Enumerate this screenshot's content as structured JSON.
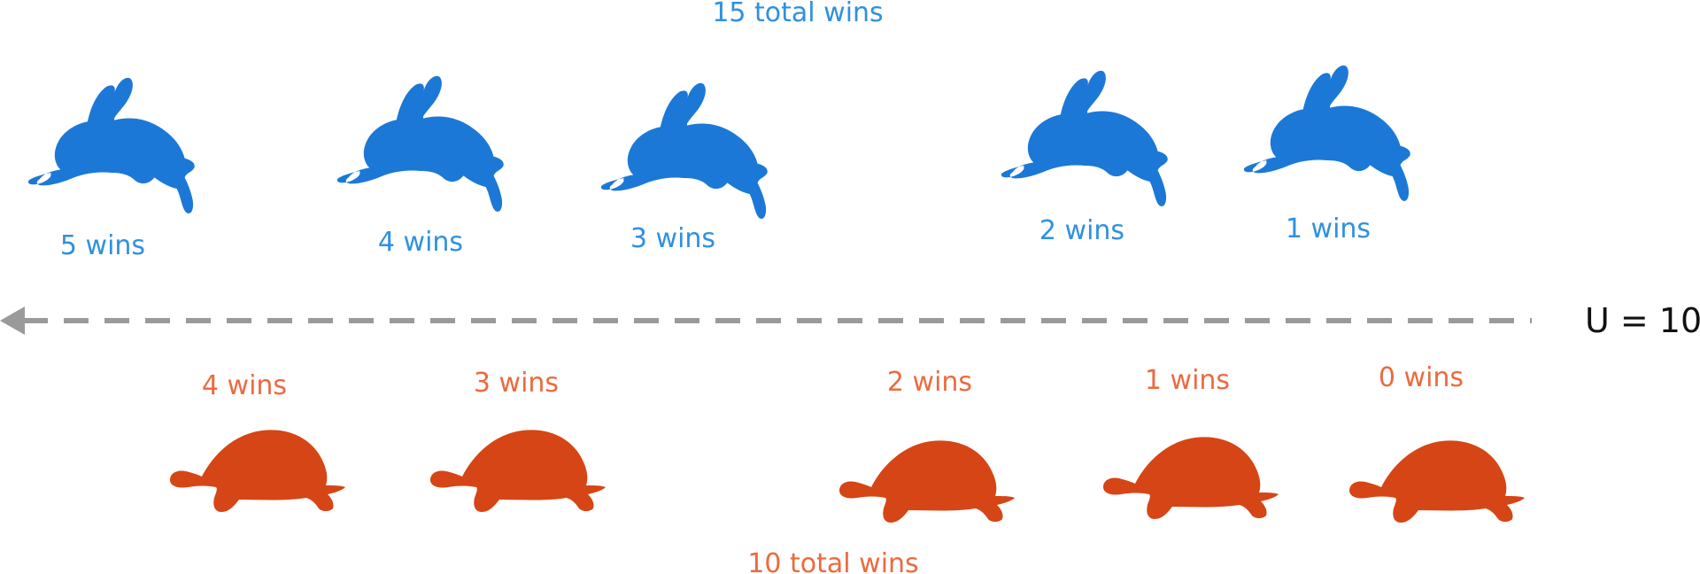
{
  "rabbits": {
    "total_label": "15 total wins",
    "color": "#1c78d6",
    "label_color": "#2f90e2",
    "items": [
      {
        "icon": "rabbit-icon",
        "wins_label": "5 wins"
      },
      {
        "icon": "rabbit-icon",
        "wins_label": "4 wins"
      },
      {
        "icon": "rabbit-icon",
        "wins_label": "3 wins"
      },
      {
        "icon": "rabbit-icon",
        "wins_label": "2 wins"
      },
      {
        "icon": "rabbit-icon",
        "wins_label": "1 wins"
      }
    ]
  },
  "tortoises": {
    "total_label": "10 total wins",
    "color": "#d64515",
    "label_color": "#ec6a3f",
    "items": [
      {
        "icon": "tortoise-icon",
        "wins_label": "4 wins"
      },
      {
        "icon": "tortoise-icon",
        "wins_label": "3 wins"
      },
      {
        "icon": "tortoise-icon",
        "wins_label": "2 wins"
      },
      {
        "icon": "tortoise-icon",
        "wins_label": "1 wins"
      },
      {
        "icon": "tortoise-icon",
        "wins_label": "0 wins"
      }
    ]
  },
  "axis": {
    "u_label": "U = 10",
    "arrow_color": "#9a9a9a",
    "direction": "left"
  }
}
